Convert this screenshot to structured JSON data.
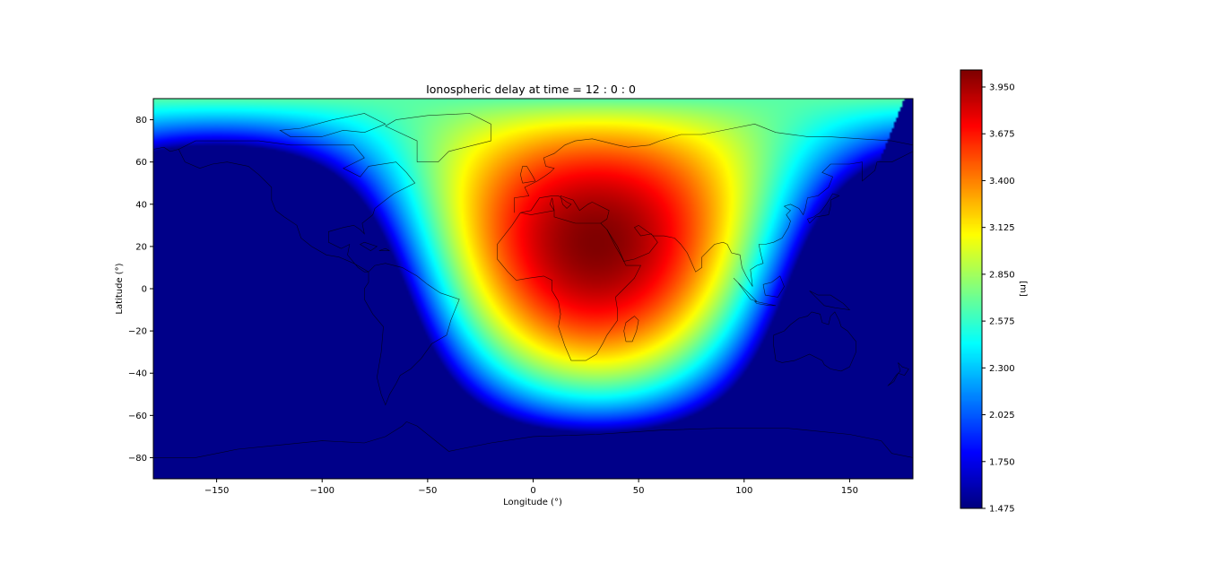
{
  "chart_data": {
    "type": "heatmap",
    "title": "Ionospheric delay at time = 12 : 0 : 0",
    "xlabel": "Longitude (°)",
    "ylabel": "Latitude (°)",
    "xlim": [
      -180,
      180
    ],
    "ylim": [
      -90,
      90
    ],
    "xticks": [
      -150,
      -100,
      -50,
      0,
      50,
      100,
      150
    ],
    "yticks": [
      -80,
      -60,
      -40,
      -20,
      0,
      20,
      40,
      60,
      80
    ],
    "colorbar": {
      "label": "[m]",
      "min": 1.475,
      "max": 4.05,
      "ticks": [
        "1.475",
        "1.750",
        "2.025",
        "2.300",
        "2.575",
        "2.850",
        "3.125",
        "3.400",
        "3.675",
        "3.950"
      ],
      "colormap": "jet"
    },
    "field": {
      "peak_value": 4.05,
      "background_value": 1.5,
      "peak_location": {
        "lon": 30,
        "lat": 22
      },
      "dayside_lon_range": [
        -40,
        110
      ],
      "description_units": "m"
    },
    "overlay": "coastlines and country borders",
    "grid": false
  }
}
